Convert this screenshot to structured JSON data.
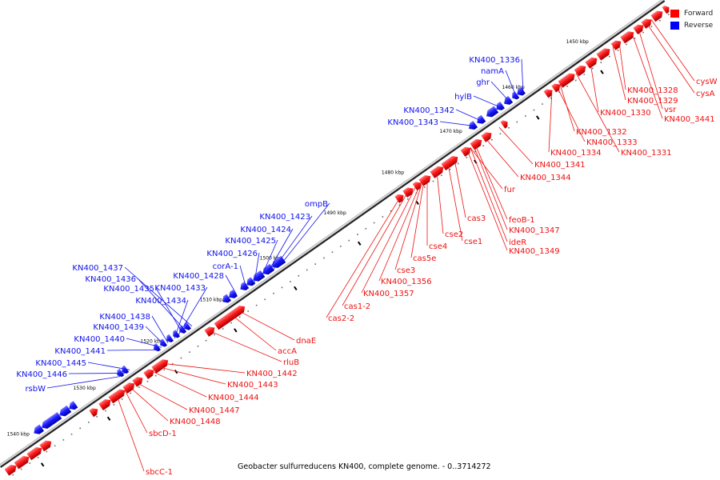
{
  "legend": {
    "items": [
      {
        "label": "Forward",
        "color": "#ff0000"
      },
      {
        "label": "Reverse",
        "color": "#0000ff"
      }
    ]
  },
  "caption": "Geobacter sulfurreducens KN400, complete genome. - 0..3714272",
  "colors": {
    "forward": "#ee1111",
    "reverse": "#1111ee",
    "backbone": "#555555"
  },
  "ticks": [
    {
      "label": "1450 kbp"
    },
    {
      "label": "1460 kbp"
    },
    {
      "label": "1470 kbp"
    },
    {
      "label": "1480 kbp"
    },
    {
      "label": "1490 kbp"
    },
    {
      "label": "1500 kbp"
    },
    {
      "label": "1510 kbp"
    },
    {
      "label": "1520 kbp"
    },
    {
      "label": "1530 kbp"
    },
    {
      "label": "1540 kbp"
    }
  ],
  "reverse_labels": [
    "KN400_1336",
    "namA",
    "ghr",
    "hylB",
    "KN400_1342",
    "KN400_1343",
    "ompB",
    "KN400_1423",
    "KN400_1424",
    "KN400_1425",
    "KN400_1426",
    "corA-1",
    "KN400_1428",
    "KN400_1437",
    "KN400_1436",
    "KN400_1435",
    "KN400_1433",
    "KN400_1434",
    "KN400_1438",
    "KN400_1439",
    "KN400_1440",
    "KN400_1441",
    "KN400_1445",
    "KN400_1446",
    "rsbW"
  ],
  "forward_labels": [
    "cysW",
    "cysA",
    "KN400_1328",
    "KN400_1329",
    "vsr",
    "KN400_1330",
    "KN400_3441",
    "KN400_1332",
    "KN400_1333",
    "KN400_1331",
    "KN400_1334",
    "KN400_1341",
    "KN400_1344",
    "fur",
    "feoB-1",
    "cas3",
    "KN400_1347",
    "cse2",
    "cse1",
    "ideR",
    "cse4",
    "KN400_1349",
    "cas5e",
    "cse3",
    "KN400_1356",
    "KN400_1357",
    "cas1-2",
    "cas2-2",
    "dnaE",
    "accA",
    "rluB",
    "KN400_1442",
    "KN400_1443",
    "KN400_1444",
    "KN400_1447",
    "KN400_1448",
    "sbcD-1",
    "sbcC-1"
  ]
}
